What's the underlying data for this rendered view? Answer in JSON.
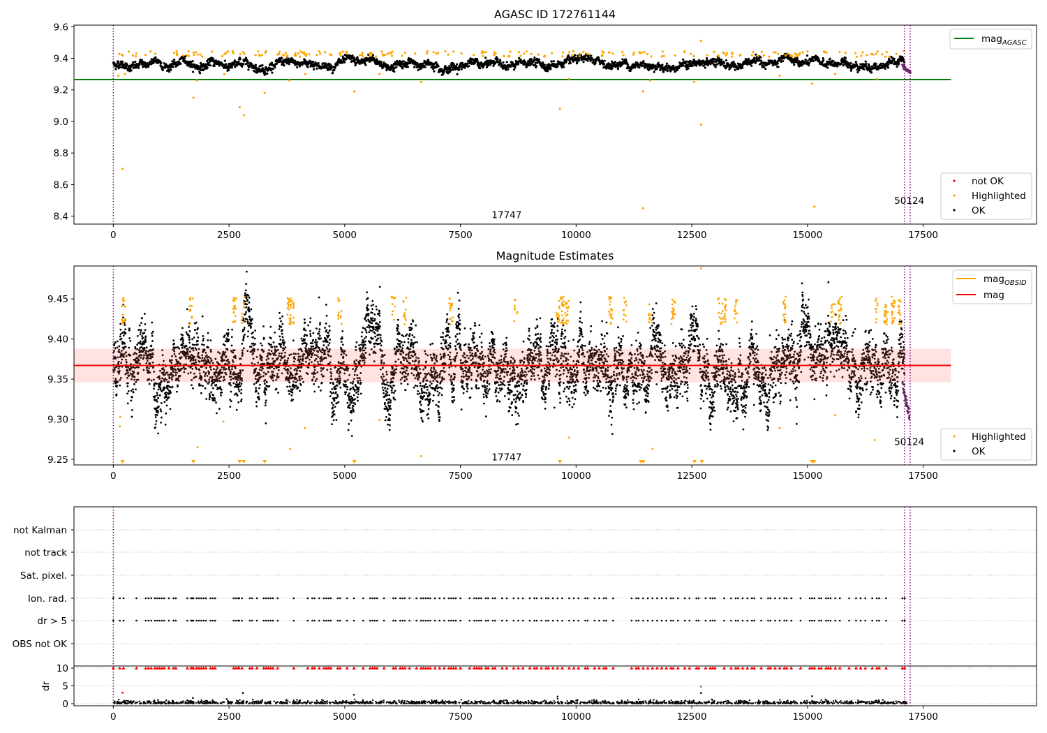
{
  "colors": {
    "ok": "#000000",
    "highlighted": "#ffa500",
    "not_ok": "#ff0000",
    "agasc_line": "#008000",
    "mean_line": "#ff0000",
    "band": "#ffc0c0",
    "obsid_line": "#800080"
  },
  "chart_data": [
    {
      "type": "scatter",
      "title": "AGASC ID 172761144",
      "xlim": [
        -850,
        19950
      ],
      "ylim": [
        8.35,
        9.61
      ],
      "xticks": [
        0,
        2500,
        5000,
        7500,
        10000,
        12500,
        15000,
        17500
      ],
      "yticks": [
        8.4,
        8.6,
        8.8,
        9.0,
        9.2,
        9.4,
        9.6
      ],
      "obsid_lines": [
        0,
        17100,
        17220
      ],
      "obsid_annotations": [
        {
          "text": "17747",
          "x": 8500,
          "y": 8.41
        },
        {
          "text": "50124",
          "x": 17200,
          "y": 8.5
        }
      ],
      "hlines": [
        {
          "name": "mag_AGASC",
          "y": 9.265,
          "x": [
            -850,
            18100
          ]
        }
      ],
      "legend_lines": [
        {
          "label": "mag",
          "sub": "AGASC",
          "color": "#008000"
        }
      ],
      "legend_points": [
        {
          "label": "not OK",
          "color": "#ff0000"
        },
        {
          "label": "Highlighted",
          "color": "#ffa500"
        },
        {
          "label": "OK",
          "color": "#000000"
        }
      ],
      "ok_band": {
        "center": 9.365,
        "spread": 0.025,
        "xmax": 17100
      },
      "highlighted_points": [
        [
          200,
          8.7
        ],
        [
          110,
          9.29
        ],
        [
          250,
          9.3
        ],
        [
          1730,
          9.15
        ],
        [
          2730,
          9.09
        ],
        [
          2820,
          9.04
        ],
        [
          3270,
          9.18
        ],
        [
          5210,
          9.19
        ],
        [
          9650,
          9.08
        ],
        [
          11450,
          9.19
        ],
        [
          12700,
          8.98
        ],
        [
          11450,
          8.45
        ],
        [
          15150,
          8.46
        ],
        [
          12700,
          9.51
        ],
        [
          4150,
          9.3
        ],
        [
          2400,
          9.3
        ],
        [
          5750,
          9.3
        ],
        [
          6650,
          9.25
        ],
        [
          15600,
          9.3
        ],
        [
          14400,
          9.29
        ],
        [
          12550,
          9.25
        ],
        [
          15100,
          9.24
        ],
        [
          16500,
          9.27
        ],
        [
          11600,
          9.26
        ],
        [
          3800,
          9.26
        ],
        [
          1800,
          9.26
        ],
        [
          9850,
          9.27
        ]
      ]
    },
    {
      "type": "scatter",
      "title": "Magnitude Estimates",
      "xlim": [
        -850,
        19950
      ],
      "ylim": [
        9.243,
        9.491
      ],
      "xticks": [
        0,
        2500,
        5000,
        7500,
        10000,
        12500,
        15000,
        17500
      ],
      "yticks": [
        9.25,
        9.3,
        9.35,
        9.4,
        9.45
      ],
      "ytick_labels": [
        "9.25",
        "9.30",
        "9.35",
        "9.40",
        "9.45"
      ],
      "obsid_lines": [
        0,
        17100,
        17220
      ],
      "obsid_annotations": [
        {
          "text": "17747",
          "x": 8500,
          "y": 9.2528
        },
        {
          "text": "50124",
          "x": 17200,
          "y": 9.272
        }
      ],
      "mean_mag": 9.367,
      "band": [
        9.346,
        9.388
      ],
      "legend_lines": [
        {
          "label": "mag",
          "sub": "OBSID",
          "color": "#ffa500"
        },
        {
          "label": "mag",
          "sub": "",
          "color": "#ff0000"
        }
      ],
      "legend_points": [
        {
          "label": "Highlighted",
          "color": "#ffa500"
        },
        {
          "label": "OK",
          "color": "#000000"
        }
      ],
      "highlighted_points": [
        [
          150,
          9.303
        ],
        [
          140,
          9.291
        ],
        [
          2380,
          9.297
        ],
        [
          4140,
          9.289
        ],
        [
          5750,
          9.299
        ],
        [
          1820,
          9.265
        ],
        [
          3820,
          9.263
        ],
        [
          6650,
          9.254
        ],
        [
          9850,
          9.277
        ],
        [
          11650,
          9.263
        ],
        [
          14400,
          9.289
        ],
        [
          15600,
          9.305
        ],
        [
          16450,
          9.274
        ],
        [
          12700,
          9.488
        ]
      ],
      "clipped_x": [
        200,
        1730,
        2730,
        2820,
        3270,
        5210,
        9650,
        11400,
        11450,
        12560,
        12720,
        15100,
        15140
      ]
    },
    {
      "type": "scatter",
      "title": "",
      "xlim": [
        -850,
        19950
      ],
      "xticks": [
        0,
        2500,
        5000,
        7500,
        10000,
        12500,
        15000,
        17500
      ],
      "categories": [
        "not Kalman",
        "not track",
        "Sat. pixel.",
        "Ion. rad.",
        "dr > 5",
        "OBS not OK"
      ],
      "flagged_rows": [
        "Ion. rad.",
        "dr > 5"
      ],
      "flag_x": [
        0,
        140,
        220,
        500,
        700,
        760,
        820,
        900,
        950,
        1000,
        1050,
        1100,
        1200,
        1300,
        1350,
        1600,
        1680,
        1700,
        1730,
        1800,
        1850,
        1900,
        1950,
        2000,
        2100,
        2150,
        2200,
        2600,
        2650,
        2700,
        2720,
        2780,
        2950,
        3000,
        3100,
        3250,
        3300,
        3350,
        3400,
        3450,
        3550,
        3900,
        4200,
        4300,
        4350,
        4450,
        4550,
        4600,
        4650,
        4700,
        4850,
        4900,
        5050,
        5200,
        5400,
        5550,
        5600,
        5650,
        5700,
        5850,
        6050,
        6100,
        6200,
        6250,
        6300,
        6400,
        6550,
        6650,
        6700,
        6750,
        6800,
        6850,
        6950,
        7050,
        7150,
        7250,
        7300,
        7350,
        7400,
        7500,
        7700,
        7800,
        7850,
        7900,
        7950,
        8050,
        8100,
        8200,
        8250,
        8400,
        8500,
        8650,
        8750,
        8850,
        9000,
        9100,
        9150,
        9250,
        9350,
        9400,
        9500,
        9600,
        9700,
        9850,
        9950,
        10050,
        10200,
        10250,
        10400,
        10500,
        10600,
        10650,
        10800,
        11200,
        11300,
        11350,
        11450,
        11550,
        11650,
        11750,
        11850,
        11950,
        12050,
        12100,
        12200,
        12350,
        12450,
        12600,
        12650,
        12800,
        12900,
        12950,
        13000,
        13200,
        13350,
        13450,
        13500,
        13600,
        13700,
        13800,
        13850,
        14000,
        14150,
        14200,
        14300,
        14400,
        14500,
        14550,
        14650,
        14850,
        15050,
        15100,
        15150,
        15250,
        15300,
        15400,
        15450,
        15500,
        15600,
        15700,
        15900,
        16050,
        16150,
        16250,
        16400,
        16500,
        16550,
        16700,
        17050,
        17100
      ],
      "dr": {
        "ylabel": "dr",
        "yticks": [
          0,
          5,
          10
        ],
        "ylim": [
          -0.4,
          10.4
        ],
        "typical": 0.4,
        "outliers": [
          [
            200,
            3.1
          ],
          [
            2800,
            3.0
          ],
          [
            5200,
            2.5
          ],
          [
            9600,
            2.0
          ],
          [
            12700,
            3.0
          ],
          [
            12700,
            4.8
          ],
          [
            15100,
            2.1
          ],
          [
            1720,
            1.6
          ],
          [
            2450,
            1.3
          ]
        ]
      }
    }
  ]
}
